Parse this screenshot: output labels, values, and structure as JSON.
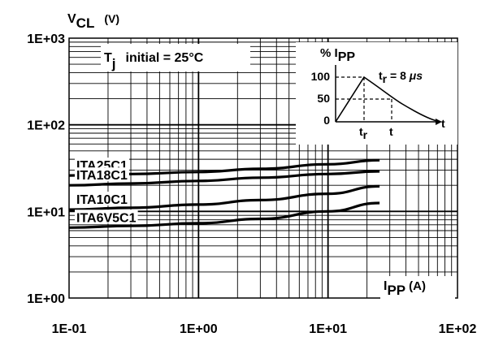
{
  "chart_data": {
    "type": "line",
    "xscale": "log",
    "yscale": "log",
    "xlim": [
      0.1,
      100
    ],
    "ylim": [
      1,
      1000
    ],
    "grid": true,
    "xticks": [
      "1E-01",
      "1E+00",
      "1E+01",
      "1E+02"
    ],
    "yticks": [
      "1E+00",
      "1E+01",
      "1E+02",
      "1E+03"
    ],
    "ylabel": {
      "main": "V",
      "sub": "CL",
      "unit": "(V)"
    },
    "xlabel": {
      "main": "I",
      "sub": "PP",
      "unit": "(A)"
    },
    "annotation": {
      "main": "T",
      "sub": "j",
      "rest": "initial = 25°C"
    },
    "series": [
      {
        "name": "ITA25C1",
        "x": [
          0.1,
          0.3,
          1,
          3,
          10,
          25
        ],
        "y": [
          26,
          27,
          28.5,
          31,
          35,
          39
        ]
      },
      {
        "name": "ITA18C1",
        "x": [
          0.1,
          0.3,
          1,
          3,
          10,
          25
        ],
        "y": [
          20,
          21,
          22.5,
          24.5,
          27,
          29
        ]
      },
      {
        "name": "ITA10C1",
        "x": [
          0.1,
          0.3,
          1,
          3,
          10,
          25
        ],
        "y": [
          10.5,
          11,
          12,
          13.5,
          16,
          19.5
        ]
      },
      {
        "name": "ITA6V5C1",
        "x": [
          0.1,
          0.3,
          1,
          3,
          10,
          25
        ],
        "y": [
          6.5,
          6.8,
          7.3,
          8.2,
          10,
          12.5
        ]
      }
    ],
    "inset": {
      "ylabel_main": "% I",
      "ylabel_sub": "PP",
      "yticks": [
        "100",
        "50",
        "0"
      ],
      "tr_label": {
        "main": "t",
        "sub": "r",
        "rest": " = 8 ",
        "unit": "μs"
      },
      "x_marks": [
        {
          "main": "t",
          "sub": "r"
        },
        {
          "main": "t",
          "sub": ""
        }
      ],
      "axis_label": "t"
    }
  }
}
